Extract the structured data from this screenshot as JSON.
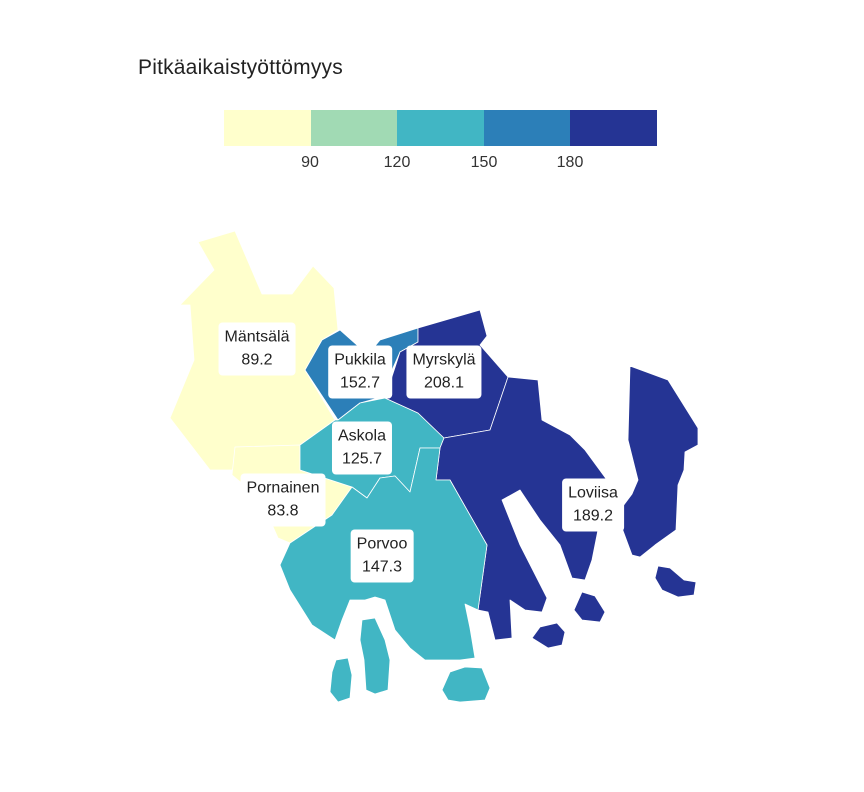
{
  "title": "Pitkäaikaistyöttömyys",
  "legend": {
    "colors": [
      "#ffffcc",
      "#a1dab4",
      "#41b6c4",
      "#2c7fb8",
      "#253494"
    ],
    "ticks": [
      "90",
      "120",
      "150",
      "180"
    ]
  },
  "regions": [
    {
      "name": "Mäntsälä",
      "value": "89.2",
      "color": "#ffffcc"
    },
    {
      "name": "Pukkila",
      "value": "152.7",
      "color": "#2c7fb8"
    },
    {
      "name": "Myrskylä",
      "value": "208.1",
      "color": "#253494"
    },
    {
      "name": "Askola",
      "value": "125.7",
      "color": "#41b6c4"
    },
    {
      "name": "Pornainen",
      "value": "83.8",
      "color": "#ffffcc"
    },
    {
      "name": "Loviisa",
      "value": "189.2",
      "color": "#253494"
    },
    {
      "name": "Porvoo",
      "value": "147.3",
      "color": "#41b6c4"
    }
  ]
}
